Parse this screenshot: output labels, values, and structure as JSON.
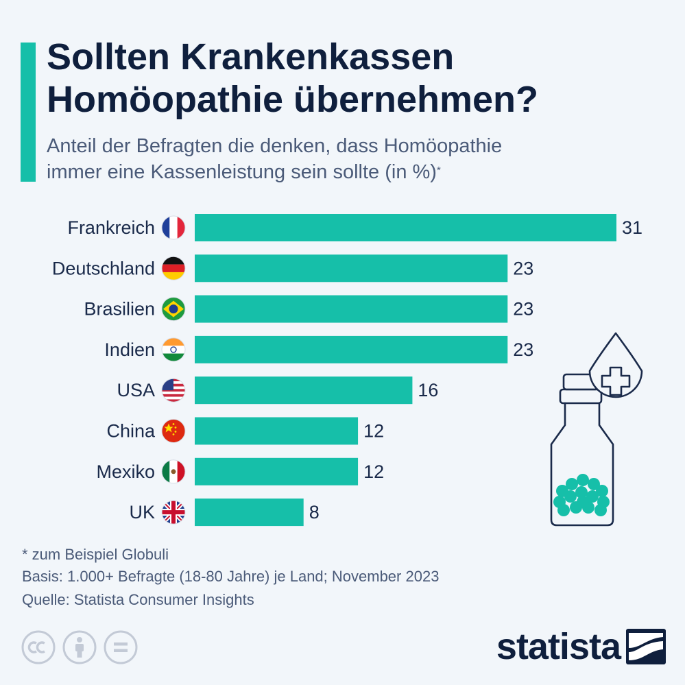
{
  "title_line1": "Sollten Krankenkassen",
  "title_line2": "Homöopathie übernehmen?",
  "subtitle_line1": "Anteil der Befragten die denken, dass Homöopathie",
  "subtitle_line2": "immer eine Kassenleistung sein sollte (in %)",
  "subtitle_mark": "*",
  "chart_data": {
    "type": "bar",
    "orientation": "horizontal",
    "categories": [
      "Frankreich",
      "Deutschland",
      "Brasilien",
      "Indien",
      "USA",
      "China",
      "Mexiko",
      "UK"
    ],
    "values": [
      31,
      23,
      23,
      23,
      16,
      12,
      12,
      8
    ],
    "flag_icons": [
      "france-flag-icon",
      "germany-flag-icon",
      "brazil-flag-icon",
      "india-flag-icon",
      "usa-flag-icon",
      "china-flag-icon",
      "mexico-flag-icon",
      "uk-flag-icon"
    ],
    "bar_color": "#16bfa9",
    "xlim": [
      0,
      31
    ],
    "grid": false,
    "legend": "none"
  },
  "footnotes": {
    "note": "* zum Beispiel Globuli",
    "basis": "Basis: 1.000+ Befragte (18-80 Jahre) je Land; November 2023",
    "source": "Quelle: Statista Consumer Insights"
  },
  "license_icons": [
    "cc-icon",
    "by-person-icon",
    "nd-equals-icon"
  ],
  "logo": {
    "text": "statista"
  },
  "illustration": "homeopathy-bottle-icon"
}
